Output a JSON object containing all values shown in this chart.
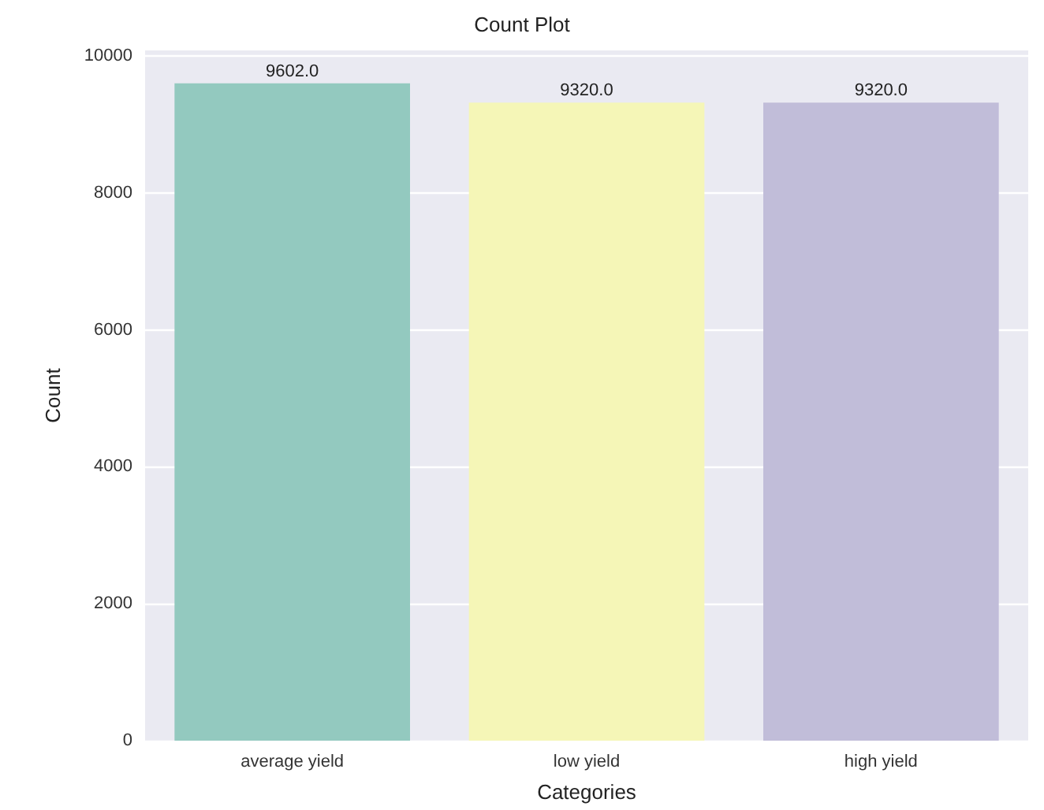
{
  "chart_data": {
    "type": "bar",
    "title": "Count Plot",
    "xlabel": "Categories",
    "ylabel": "Count",
    "categories": [
      "average yield",
      "low yield",
      "high yield"
    ],
    "values": [
      9602,
      9320,
      9320
    ],
    "colors": [
      "#93c9bf",
      "#f5f6b7",
      "#c1bdd9"
    ],
    "value_labels": [
      "9602.0",
      "9320.0",
      "9320.0"
    ],
    "ylim": [
      0,
      10082
    ],
    "yticks": [
      0,
      2000,
      4000,
      6000,
      8000,
      10000
    ],
    "grid": "y"
  }
}
